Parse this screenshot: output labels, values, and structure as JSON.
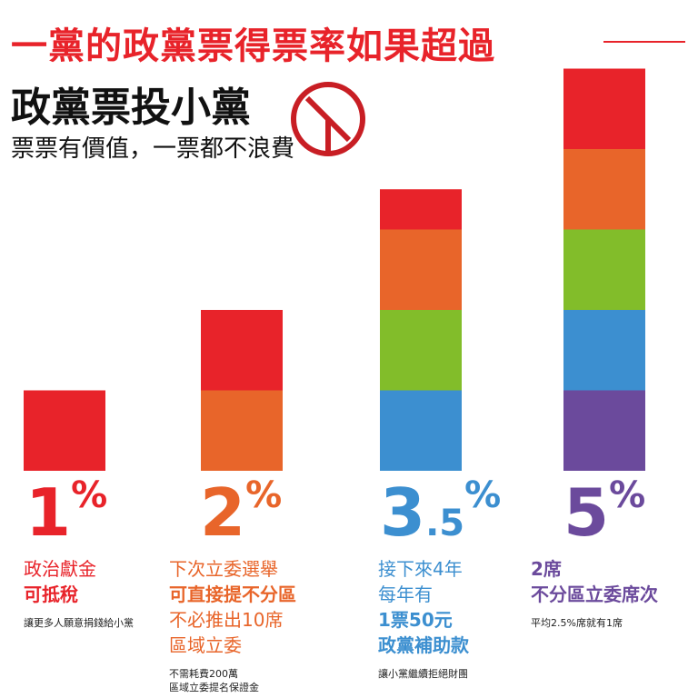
{
  "header": {
    "headline": "一黨的政黨票得票率如果超過",
    "title": "政黨票投小黨",
    "subtitle": "票票有價值，一票都不浪費"
  },
  "colors": {
    "red": "#e8232a",
    "orange": "#e8652a",
    "green": "#82bd2a",
    "blue": "#3c8fd0",
    "purple": "#6b4a9c"
  },
  "chart_data": {
    "type": "bar",
    "stacked": true,
    "categories": [
      "1%",
      "2%",
      "3.5%",
      "5%"
    ],
    "segment_colors": [
      "#e8232a",
      "#e8652a",
      "#82bd2a",
      "#3c8fd0",
      "#6b4a9c"
    ],
    "values": [
      1,
      2,
      3.5,
      5
    ],
    "segments_per_bar": [
      1,
      2,
      3.5,
      5
    ],
    "ylim": [
      0,
      5
    ]
  },
  "columns": [
    {
      "pct_int": "1",
      "pct_dec": "",
      "pct_sym": "%",
      "color": "#e8232a",
      "lines": [
        {
          "text": "政治獻金",
          "bold": false
        },
        {
          "text": "可抵稅",
          "bold": true
        }
      ],
      "notes": [
        "讓更多人願意捐錢給小黨"
      ]
    },
    {
      "pct_int": "2",
      "pct_dec": "",
      "pct_sym": "%",
      "color": "#e8652a",
      "lines": [
        {
          "text": "下次立委選舉",
          "bold": false
        },
        {
          "text": "可直接提不分區",
          "bold": true
        },
        {
          "text": "不必推出10席",
          "bold": false
        },
        {
          "text": "區域立委",
          "bold": false
        }
      ],
      "notes": [
        "不需耗費200萬",
        "區域立委提名保證金"
      ]
    },
    {
      "pct_int": "3",
      "pct_dec": ".5",
      "pct_sym": "%",
      "color": "#3c8fd0",
      "lines": [
        {
          "text": "接下來4年",
          "bold": false
        },
        {
          "text": "每年有",
          "bold": false
        },
        {
          "text": "1票50元",
          "bold": true
        },
        {
          "text": "政黨補助款",
          "bold": true
        }
      ],
      "notes": [
        "讓小黨繼續拒絕財團"
      ]
    },
    {
      "pct_int": "5",
      "pct_dec": "",
      "pct_sym": "%",
      "color": "#6b4a9c",
      "lines": [
        {
          "text": "2席",
          "bold": true
        },
        {
          "text": "不分區立委席次",
          "bold": true
        }
      ],
      "notes": [
        "平均2.5%席就有1席"
      ]
    }
  ]
}
